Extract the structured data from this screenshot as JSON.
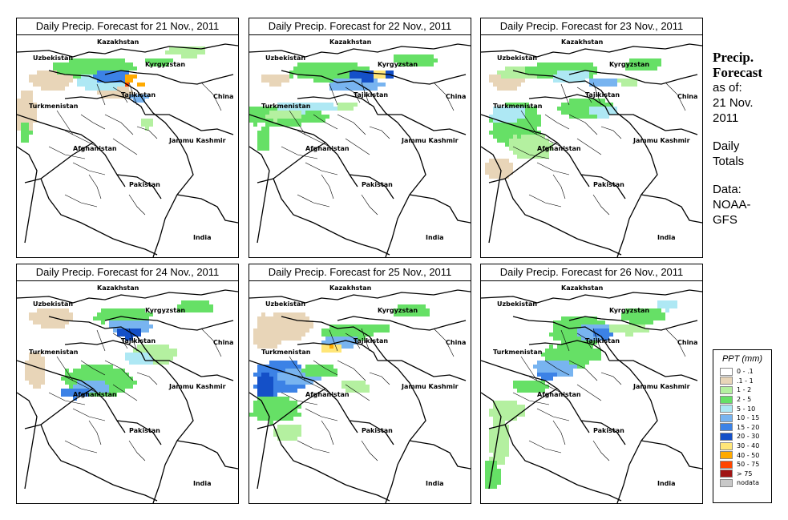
{
  "panels": [
    {
      "title": "Daily Precip. Forecast for  21 Nov., 2011"
    },
    {
      "title": "Daily Precip. Forecast for  22 Nov., 2011"
    },
    {
      "title": "Daily Precip. Forecast for  23 Nov., 2011"
    },
    {
      "title": "Daily Precip. Forecast for  24 Nov., 2011"
    },
    {
      "title": "Daily Precip. Forecast for  25 Nov., 2011"
    },
    {
      "title": "Daily Precip. Forecast for  26 Nov., 2011"
    }
  ],
  "map_labels": {
    "kazakhstan": "Kazakhstan",
    "uzbekistan": "Uzbekistan",
    "kyrgyzstan": "Kyrgyzstan",
    "tajikistan": "Tajikistan",
    "china": "China",
    "turkmenistan": "Turkmenistan",
    "jammu_kashmir": "Jammu Kashmir",
    "afghanistan": "Afghanistan",
    "pakistan": "Pakistan",
    "india": "India"
  },
  "sidebar": {
    "heading_line1": "Precip.",
    "heading_line2": "Forecast",
    "asof_line1": "as of:",
    "asof_line2": "21 Nov.",
    "asof_line3": "2011",
    "totals_line1": "Daily",
    "totals_line2": "Totals",
    "data_line1": "Data:",
    "data_line2": "NOAA-",
    "data_line3": "GFS"
  },
  "legend": {
    "title": "PPT (mm)",
    "items": [
      {
        "label": "0 - .1",
        "color": "#ffffff"
      },
      {
        "label": ".1 - 1",
        "color": "#e8d5b8"
      },
      {
        "label": "1 - 2",
        "color": "#b4f0a0"
      },
      {
        "label": "2 - 5",
        "color": "#66e066"
      },
      {
        "label": "5 - 10",
        "color": "#aee8f4"
      },
      {
        "label": "10 - 15",
        "color": "#78b4f0"
      },
      {
        "label": "15 - 20",
        "color": "#3c82e6"
      },
      {
        "label": "20 - 30",
        "color": "#1450c8"
      },
      {
        "label": "30 - 40",
        "color": "#ffe678"
      },
      {
        "label": "40 - 50",
        "color": "#ffaa00"
      },
      {
        "label": "50 - 75",
        "color": "#ff4600"
      },
      {
        "label": "> 75",
        "color": "#a01414"
      },
      {
        "label": "nodata",
        "color": "#c8c8c8"
      }
    ]
  }
}
